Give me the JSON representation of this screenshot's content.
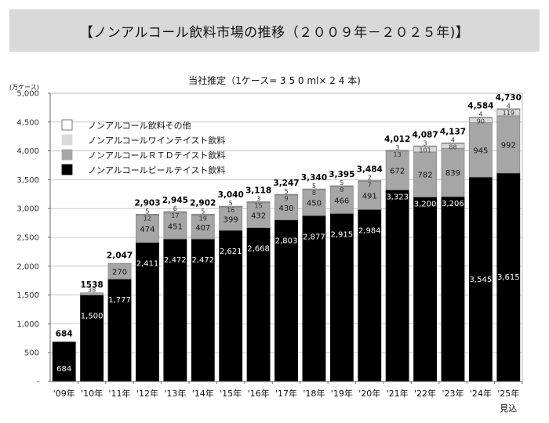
{
  "header": {
    "title": "【ノンアルコール飲料市場の推移（２００９年－２０２５年)】"
  },
  "chart_data": {
    "type": "bar",
    "stacked": true,
    "title": "【ノンアルコール飲料市場の推移（２００９年－２０２５年)】",
    "subtitle": "当社推定（1ケース= 3 5 0 ml× 2 4 本)",
    "ylabel": "(万ケース)",
    "xlabel": "",
    "ylim": [
      0,
      5000
    ],
    "yticks": [
      0,
      500,
      1000,
      1500,
      2000,
      2500,
      3000,
      3500,
      4000,
      4500,
      5000
    ],
    "ytick_labels": [
      "-",
      "500",
      "1,000",
      "1,500",
      "2,000",
      "2,500",
      "3,000",
      "3,500",
      "4,000",
      "4,500",
      "5,000"
    ],
    "grid": true,
    "legend_position": "top-left",
    "categories": [
      "'09年",
      "'10年",
      "'11年",
      "'12年",
      "'13年",
      "'14年",
      "'15年",
      "'16年",
      "'17年",
      "'18年",
      "'19年",
      "'20年",
      "'21年",
      "'22年",
      "'23年",
      "'24年",
      "'25年"
    ],
    "category_note": {
      "index": 16,
      "text": "見込"
    },
    "series": [
      {
        "name": "ノンアルコールビールテイスト飲料",
        "color": "#000000",
        "values": [
          684,
          1500,
          1777,
          2411,
          2472,
          2472,
          2621,
          2668,
          2803,
          2877,
          2915,
          2984,
          3323,
          3200,
          3206,
          3545,
          3615
        ],
        "labels": [
          "684",
          "1,500",
          "1,777",
          "2,411",
          "2,472",
          "2,472",
          "2,621",
          "2,668",
          "2,803",
          "2,877",
          "2,915",
          "2,984",
          "3,323",
          "3,200",
          "3,206",
          "3,545",
          "3,615"
        ]
      },
      {
        "name": "ノンアルコールＲＴＤテイスト飲料",
        "color": "#a6a6a6",
        "values": [
          0,
          38,
          270,
          474,
          451,
          407,
          399,
          432,
          430,
          450,
          466,
          491,
          672,
          782,
          839,
          945,
          992
        ],
        "labels": [
          "",
          "38",
          "270",
          "474",
          "451",
          "407",
          "399",
          "432",
          "430",
          "450",
          "466",
          "491",
          "672",
          "782",
          "839",
          "945",
          "992"
        ]
      },
      {
        "name": "ノンアルコールワインテイスト飲料",
        "color": "#d9d9d9",
        "values": [
          0,
          0,
          0,
          12,
          17,
          19,
          16,
          15,
          9,
          8,
          9,
          7,
          13,
          101,
          88,
          90,
          119
        ],
        "labels": [
          "",
          "",
          "",
          "12",
          "17",
          "19",
          "16",
          "15",
          "9",
          "8",
          "9",
          "7",
          "13",
          "101",
          "88",
          "90",
          "119"
        ]
      },
      {
        "name": "ノンアルコール飲料その他",
        "color": "#ffffff",
        "values": [
          0,
          0,
          0,
          5,
          6,
          5,
          5,
          3,
          5,
          5,
          5,
          2,
          3,
          3,
          4,
          4,
          4
        ],
        "labels": [
          "",
          "",
          "",
          "5",
          "6",
          "5",
          "5",
          "3",
          "5",
          "5",
          "5",
          "2",
          "3",
          "3",
          "4",
          "4",
          "4"
        ]
      }
    ],
    "totals": [
      "684",
      "1538",
      "2,047",
      "2,903",
      "2,945",
      "2,902",
      "3,040",
      "3,118",
      "3,247",
      "3,340",
      "3,395",
      "3,484",
      "4,012",
      "4,087",
      "4,137",
      "4,584",
      "4,730"
    ],
    "legend": [
      {
        "name": "ノンアルコール飲料その他",
        "color": "#ffffff"
      },
      {
        "name": "ノンアルコールワインテイスト飲料",
        "color": "#d9d9d9"
      },
      {
        "name": "ノンアルコールＲＴＤテイスト飲料",
        "color": "#a6a6a6"
      },
      {
        "name": "ノンアルコールビールテイスト飲料",
        "color": "#000000"
      }
    ]
  }
}
